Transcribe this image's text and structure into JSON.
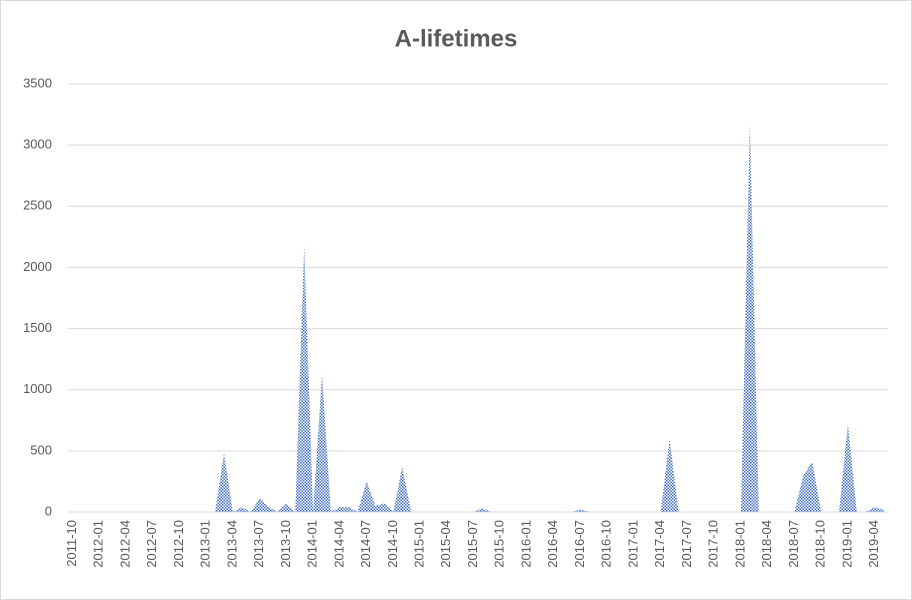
{
  "chart_data": {
    "type": "area",
    "title": "A-lifetimes",
    "categories": [
      "2011-10",
      null,
      null,
      "2012-01",
      null,
      null,
      "2012-04",
      null,
      null,
      "2012-07",
      null,
      null,
      "2012-10",
      null,
      null,
      "2013-01",
      null,
      null,
      "2013-04",
      null,
      null,
      "2013-07",
      null,
      null,
      "2013-10",
      null,
      null,
      "2014-01",
      null,
      null,
      "2014-04",
      null,
      null,
      "2014-07",
      null,
      null,
      "2014-10",
      null,
      null,
      "2015-01",
      null,
      null,
      "2015-04",
      null,
      null,
      "2015-07",
      null,
      null,
      "2015-10",
      null,
      null,
      "2016-01",
      null,
      null,
      "2016-04",
      null,
      null,
      "2016-07",
      null,
      null,
      "2016-10",
      null,
      null,
      "2017-01",
      null,
      null,
      "2017-04",
      null,
      null,
      "2017-07",
      null,
      null,
      "2017-10",
      null,
      null,
      "2018-01",
      null,
      null,
      "2018-04",
      null,
      null,
      "2018-07",
      null,
      null,
      "2018-10",
      null,
      null,
      "2019-01",
      null,
      null,
      "2019-04",
      null
    ],
    "values": [
      0,
      0,
      0,
      0,
      0,
      0,
      0,
      0,
      0,
      0,
      0,
      0,
      0,
      0,
      0,
      0,
      0,
      480,
      0,
      40,
      0,
      110,
      40,
      0,
      70,
      0,
      2180,
      0,
      1130,
      0,
      40,
      40,
      0,
      250,
      50,
      70,
      0,
      370,
      0,
      0,
      0,
      0,
      0,
      0,
      0,
      0,
      30,
      0,
      0,
      0,
      0,
      0,
      0,
      0,
      0,
      0,
      0,
      20,
      0,
      0,
      0,
      0,
      0,
      0,
      0,
      0,
      0,
      600,
      0,
      0,
      0,
      0,
      0,
      0,
      0,
      0,
      3180,
      0,
      0,
      0,
      0,
      0,
      300,
      410,
      0,
      0,
      0,
      720,
      0,
      0,
      40,
      20
    ],
    "color": "#4472c4",
    "ylim": [
      0,
      3500
    ],
    "yticks": [
      0,
      500,
      1000,
      1500,
      2000,
      2500,
      3000,
      3500
    ],
    "grid": true
  }
}
